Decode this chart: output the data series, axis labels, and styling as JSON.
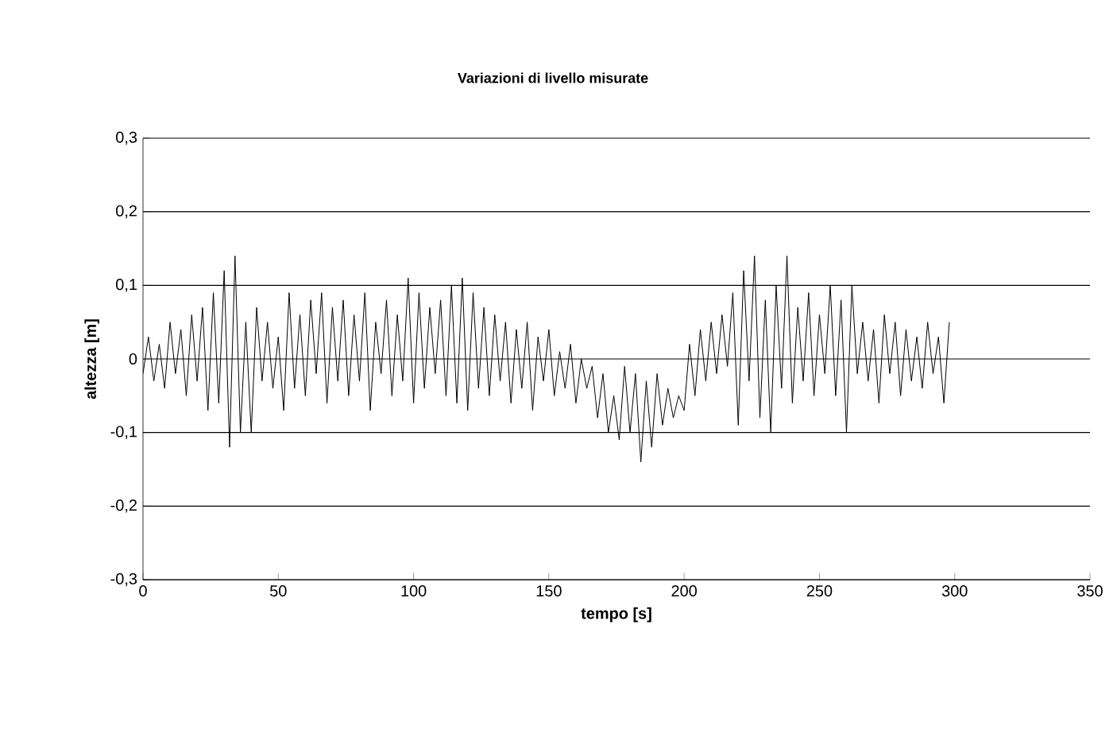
{
  "chart_data": {
    "type": "line",
    "title": "Variazioni di livello misurate",
    "xlabel": "tempo [s]",
    "ylabel": "altezza [m]",
    "xlim": [
      0,
      350
    ],
    "xticks": [
      0,
      50,
      100,
      150,
      200,
      250,
      300,
      350
    ],
    "ylim": [
      -0.3,
      0.3
    ],
    "yticks": [
      {
        "value": -0.3,
        "label": "-0,3"
      },
      {
        "value": -0.2,
        "label": "-0,2"
      },
      {
        "value": -0.1,
        "label": "-0,1"
      },
      0,
      {
        "value": 0.1,
        "label": "0,1"
      },
      {
        "value": 0.2,
        "label": "0,2"
      },
      {
        "value": 0.3,
        "label": "0,3"
      }
    ],
    "grid": "y",
    "marker": "none",
    "line_style": "solid",
    "series": [
      {
        "color": "#000000",
        "x": [
          0,
          2,
          4,
          6,
          8,
          10,
          12,
          14,
          16,
          18,
          20,
          22,
          24,
          26,
          28,
          30,
          32,
          34,
          36,
          38,
          40,
          42,
          44,
          46,
          48,
          50,
          52,
          54,
          56,
          58,
          60,
          62,
          64,
          66,
          68,
          70,
          72,
          74,
          76,
          78,
          80,
          82,
          84,
          86,
          88,
          90,
          92,
          94,
          96,
          98,
          100,
          102,
          104,
          106,
          108,
          110,
          112,
          114,
          116,
          118,
          120,
          122,
          124,
          126,
          128,
          130,
          132,
          134,
          136,
          138,
          140,
          142,
          144,
          146,
          148,
          150,
          152,
          154,
          156,
          158,
          160,
          162,
          164,
          166,
          168,
          170,
          172,
          174,
          176,
          178,
          180,
          182,
          184,
          186,
          188,
          190,
          192,
          194,
          196,
          198,
          200,
          202,
          204,
          206,
          208,
          210,
          212,
          214,
          216,
          218,
          220,
          222,
          224,
          226,
          228,
          230,
          232,
          234,
          236,
          238,
          240,
          242,
          244,
          246,
          248,
          250,
          252,
          254,
          256,
          258,
          260,
          262,
          264,
          266,
          268,
          270,
          272,
          274,
          276,
          278,
          280,
          282,
          284,
          286,
          288,
          290,
          292,
          294,
          296,
          298
        ],
        "values": [
          -0.02,
          0.03,
          -0.03,
          0.02,
          -0.04,
          0.05,
          -0.02,
          0.04,
          -0.05,
          0.06,
          -0.03,
          0.07,
          -0.07,
          0.09,
          -0.06,
          0.12,
          -0.12,
          0.14,
          -0.1,
          0.05,
          -0.1,
          0.07,
          -0.03,
          0.05,
          -0.04,
          0.03,
          -0.07,
          0.09,
          -0.04,
          0.06,
          -0.05,
          0.08,
          -0.02,
          0.09,
          -0.06,
          0.07,
          -0.03,
          0.08,
          -0.05,
          0.06,
          -0.03,
          0.09,
          -0.07,
          0.05,
          -0.02,
          0.08,
          -0.05,
          0.06,
          -0.03,
          0.11,
          -0.06,
          0.09,
          -0.04,
          0.07,
          -0.02,
          0.08,
          -0.05,
          0.1,
          -0.06,
          0.11,
          -0.07,
          0.09,
          -0.04,
          0.07,
          -0.05,
          0.06,
          -0.03,
          0.05,
          -0.06,
          0.04,
          -0.04,
          0.05,
          -0.07,
          0.03,
          -0.03,
          0.04,
          -0.05,
          0.01,
          -0.04,
          0.02,
          -0.06,
          0.0,
          -0.04,
          -0.01,
          -0.08,
          -0.02,
          -0.1,
          -0.05,
          -0.11,
          -0.01,
          -0.1,
          -0.02,
          -0.14,
          -0.03,
          -0.12,
          -0.02,
          -0.09,
          -0.04,
          -0.08,
          -0.05,
          -0.07,
          0.02,
          -0.05,
          0.04,
          -0.03,
          0.05,
          -0.02,
          0.06,
          -0.01,
          0.09,
          -0.09,
          0.12,
          -0.03,
          0.14,
          -0.08,
          0.08,
          -0.1,
          0.1,
          -0.04,
          0.14,
          -0.06,
          0.07,
          -0.03,
          0.09,
          -0.05,
          0.06,
          -0.02,
          0.1,
          -0.05,
          0.08,
          -0.1,
          0.1,
          -0.02,
          0.05,
          -0.03,
          0.04,
          -0.06,
          0.06,
          -0.02,
          0.05,
          -0.05,
          0.04,
          -0.03,
          0.03,
          -0.04,
          0.05,
          -0.02,
          0.03,
          -0.06,
          0.05
        ]
      }
    ]
  }
}
